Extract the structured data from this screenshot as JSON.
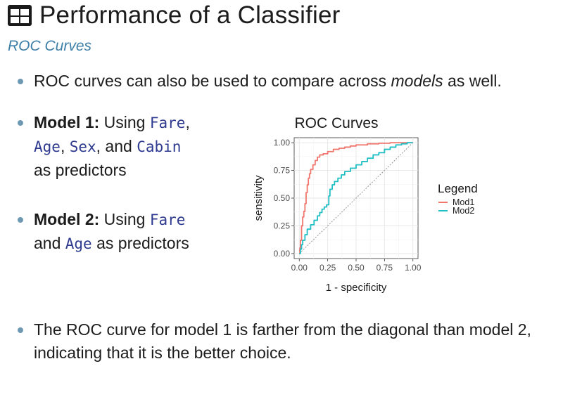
{
  "header": {
    "title": "Performance of a Classifier",
    "subtitle": "ROC Curves",
    "icon": "table-icon"
  },
  "bullets": {
    "b1": {
      "before": "ROC curves can also be used to compare across ",
      "em": "models",
      "after": " as well."
    },
    "b2": {
      "strong": "Model 1:",
      "intro": " Using ",
      "v1": "Fare",
      "sep1": ", ",
      "v2": "Age",
      "sep2": ", ",
      "v3": "Sex",
      "sep3": ", and ",
      "v4": "Cabin",
      "tail": " as predictors"
    },
    "b3": {
      "strong": "Model 2:",
      "intro": " Using ",
      "v1": "Fare",
      "sep1": " and ",
      "v2": "Age",
      "tail": " as predictors"
    },
    "b4": {
      "text": "The ROC curve for model 1 is farther from the diagonal than model 2, indicating that it is the better choice."
    }
  },
  "colors": {
    "bullet": "#6e99b4",
    "code": "#2e3a8f",
    "subtitle": "#3e7fa8",
    "mod1": "#f0766d",
    "mod2": "#20bfc4",
    "panel_grid": "#ebebeb"
  },
  "chart_data": {
    "type": "line",
    "title": "ROC Curves",
    "xlabel": "1 - specificity",
    "ylabel": "sensitivity",
    "xlim": [
      0,
      1
    ],
    "ylim": [
      0,
      1
    ],
    "xticks": [
      "0.00",
      "0.25",
      "0.50",
      "0.75",
      "1.00"
    ],
    "yticks": [
      "0.00",
      "0.25",
      "0.50",
      "0.75",
      "1.00"
    ],
    "grid": true,
    "reference_line": "diagonal",
    "legend": {
      "title": "Legend",
      "position": "right"
    },
    "series": [
      {
        "name": "Mod1",
        "color": "#f0766d",
        "x": [
          0,
          0.005,
          0.01,
          0.02,
          0.03,
          0.04,
          0.05,
          0.06,
          0.07,
          0.08,
          0.09,
          0.1,
          0.12,
          0.14,
          0.16,
          0.18,
          0.21,
          0.25,
          0.3,
          0.35,
          0.4,
          0.45,
          0.5,
          0.6,
          0.7,
          0.8,
          0.9,
          1.0
        ],
        "y": [
          0,
          0.05,
          0.12,
          0.25,
          0.33,
          0.38,
          0.45,
          0.55,
          0.62,
          0.68,
          0.72,
          0.76,
          0.8,
          0.84,
          0.87,
          0.89,
          0.9,
          0.92,
          0.94,
          0.95,
          0.96,
          0.97,
          0.98,
          0.99,
          0.995,
          1.0,
          1.0,
          1.0
        ]
      },
      {
        "name": "Mod2",
        "color": "#20bfc4",
        "x": [
          0,
          0.01,
          0.02,
          0.03,
          0.05,
          0.07,
          0.1,
          0.13,
          0.16,
          0.18,
          0.2,
          0.22,
          0.24,
          0.26,
          0.27,
          0.29,
          0.31,
          0.34,
          0.37,
          0.4,
          0.45,
          0.5,
          0.55,
          0.6,
          0.65,
          0.7,
          0.75,
          0.8,
          0.85,
          0.9,
          0.95,
          1.0
        ],
        "y": [
          0,
          0.04,
          0.08,
          0.12,
          0.17,
          0.22,
          0.26,
          0.3,
          0.34,
          0.37,
          0.4,
          0.42,
          0.44,
          0.52,
          0.58,
          0.62,
          0.65,
          0.68,
          0.71,
          0.74,
          0.77,
          0.8,
          0.83,
          0.86,
          0.89,
          0.91,
          0.94,
          0.96,
          0.98,
          0.99,
          1.0,
          1.0
        ]
      }
    ]
  }
}
